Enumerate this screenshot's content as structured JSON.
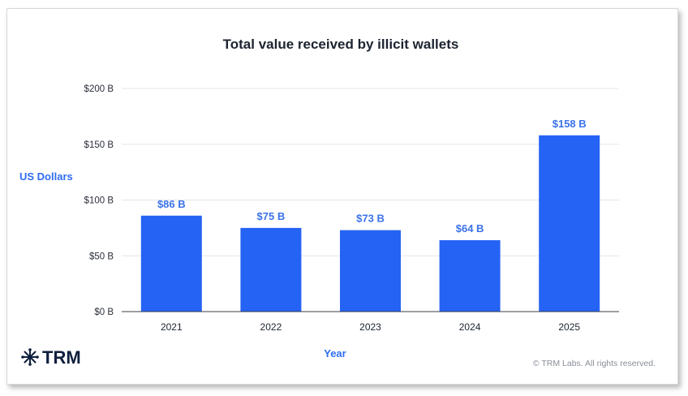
{
  "chart_data": {
    "type": "bar",
    "title": "Total value received by illicit wallets",
    "xlabel": "Year",
    "ylabel": "US Dollars",
    "categories": [
      "2021",
      "2022",
      "2023",
      "2024",
      "2025"
    ],
    "values": [
      86,
      75,
      73,
      64,
      158
    ],
    "data_labels": [
      "$86 B",
      "$75 B",
      "$73 B",
      "$64 B",
      "$158 B"
    ],
    "ylim": [
      0,
      200
    ],
    "yticks": [
      0,
      50,
      100,
      150,
      200
    ],
    "ytick_labels": [
      "$0 B",
      "$50 B",
      "$100 B",
      "$150 B",
      "$200 B"
    ],
    "grid": true,
    "bar_color": "#2563f5",
    "unit": "B"
  },
  "branding": {
    "logo_text": "TRM",
    "copyright": "© TRM Labs. All rights reserved."
  }
}
